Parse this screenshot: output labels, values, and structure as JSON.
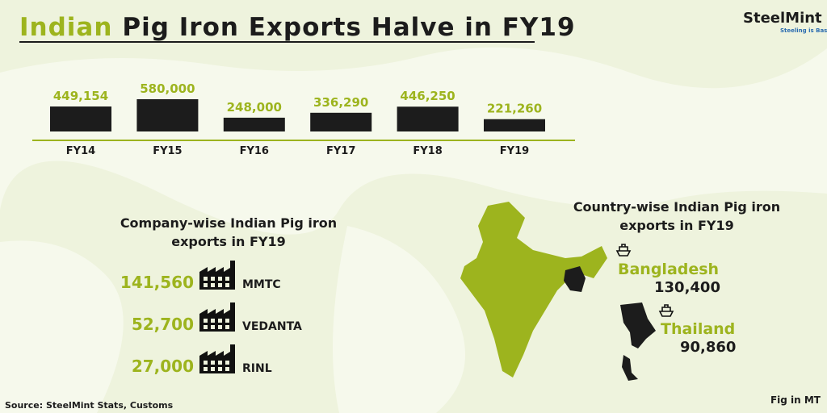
{
  "title_highlight": "Indian",
  "title_rest": "Pig Iron Exports Halve in FY19",
  "logo": {
    "name": "SteelMint",
    "tagline": "Steeling is Basic"
  },
  "chart_data": {
    "type": "bar",
    "categories": [
      "FY14",
      "FY15",
      "FY16",
      "FY17",
      "FY18",
      "FY19"
    ],
    "values": [
      449154,
      580000,
      248000,
      336290,
      446250,
      221260
    ],
    "value_labels": [
      "449,154",
      "580,000",
      "248,000",
      "336,290",
      "446,250",
      "221,260"
    ],
    "color": "#1c1c1c"
  },
  "company": {
    "title_lines": [
      "Company-wise Indian Pig iron",
      "exports in FY19"
    ],
    "items": [
      {
        "name": "MMTC",
        "amount": "141,560"
      },
      {
        "name": "VEDANTA",
        "amount": "52,700"
      },
      {
        "name": "RINL",
        "amount": "27,000"
      }
    ]
  },
  "country": {
    "title_lines": [
      "Country-wise Indian Pig iron",
      "exports in FY19"
    ],
    "items": [
      {
        "name": "Bangladesh",
        "amount": "130,400"
      },
      {
        "name": "Thailand",
        "amount": "90,860"
      }
    ]
  },
  "source": "Source: SteelMint Stats, Customs",
  "unit_note": "Fig in MT"
}
